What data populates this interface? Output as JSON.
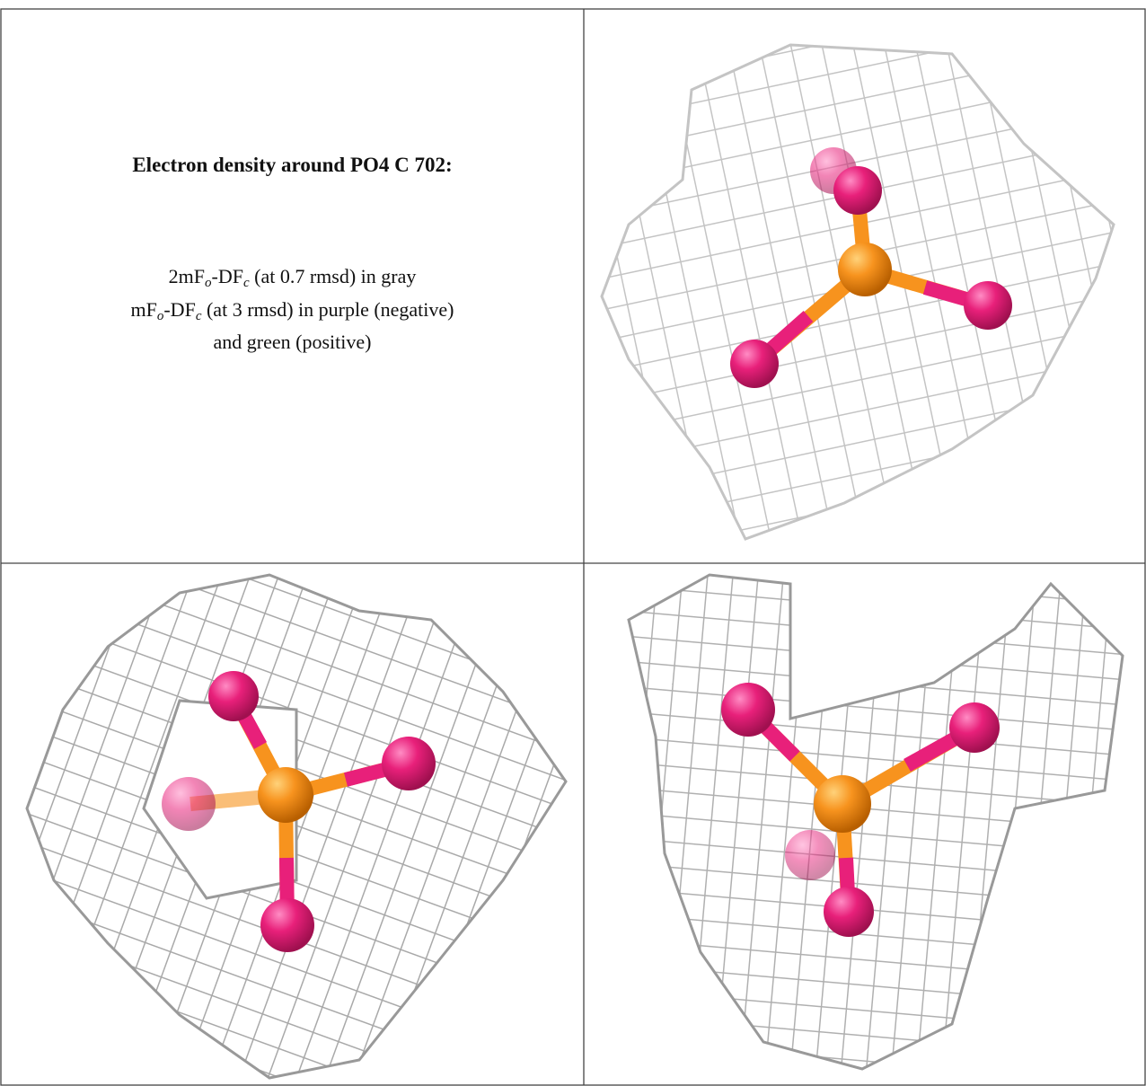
{
  "caption": {
    "title": "Electron density around PO4 C 702:",
    "lines": [
      [
        "2mF",
        "o",
        "-DF",
        "c",
        " (at 0.7 rmsd) in gray"
      ],
      [
        "mF",
        "o",
        "-DF",
        "c",
        " (at 3 rmsd) in purple (negative)"
      ],
      [
        "and green (positive)"
      ]
    ]
  }
}
